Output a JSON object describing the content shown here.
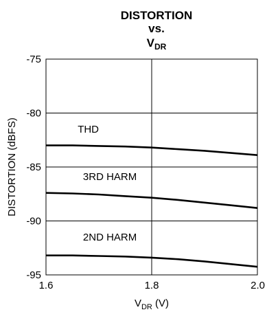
{
  "chart_data": {
    "type": "line",
    "title": {
      "line1": "DISTORTION",
      "line2": "vs.",
      "line3_main": "V",
      "line3_sub": "DR"
    },
    "xlabel": {
      "main": "V",
      "sub": "DR",
      "suffix": " (V)"
    },
    "ylabel": "DISTORTION (dBFS)",
    "xlim": [
      1.6,
      2.0
    ],
    "ylim": [
      -95,
      -75
    ],
    "xticks": [
      {
        "value": 1.6,
        "label": "1.6"
      },
      {
        "value": 1.8,
        "label": "1.8"
      },
      {
        "value": 2.0,
        "label": "2.0"
      }
    ],
    "yticks": [
      {
        "value": -75,
        "label": "-75"
      },
      {
        "value": -80,
        "label": "-80"
      },
      {
        "value": -85,
        "label": "-85"
      },
      {
        "value": -90,
        "label": "-90"
      },
      {
        "value": -95,
        "label": "-95"
      }
    ],
    "grid": {
      "x": true,
      "y": true
    },
    "series": [
      {
        "name": "THD",
        "x": [
          1.6,
          1.65,
          1.7,
          1.75,
          1.8,
          1.85,
          1.9,
          1.95,
          2.0
        ],
        "y": [
          -83.0,
          -83.0,
          -83.05,
          -83.1,
          -83.2,
          -83.35,
          -83.5,
          -83.7,
          -83.9
        ]
      },
      {
        "name": "3RD HARM",
        "x": [
          1.6,
          1.65,
          1.7,
          1.75,
          1.8,
          1.85,
          1.9,
          1.95,
          2.0
        ],
        "y": [
          -87.4,
          -87.45,
          -87.55,
          -87.7,
          -87.85,
          -88.05,
          -88.3,
          -88.55,
          -88.8
        ]
      },
      {
        "name": "2ND HARM",
        "x": [
          1.6,
          1.65,
          1.7,
          1.75,
          1.8,
          1.85,
          1.9,
          1.95,
          2.0
        ],
        "y": [
          -93.2,
          -93.2,
          -93.25,
          -93.3,
          -93.4,
          -93.55,
          -93.75,
          -94.0,
          -94.25
        ]
      }
    ],
    "annotations": [
      {
        "text": "THD",
        "x": 1.66,
        "y": -81.8
      },
      {
        "text": "3RD HARM",
        "x": 1.67,
        "y": -86.2
      },
      {
        "text": "2ND HARM",
        "x": 1.67,
        "y": -91.8
      }
    ],
    "colors": {
      "line": "#000000",
      "background": "#ffffff"
    }
  }
}
